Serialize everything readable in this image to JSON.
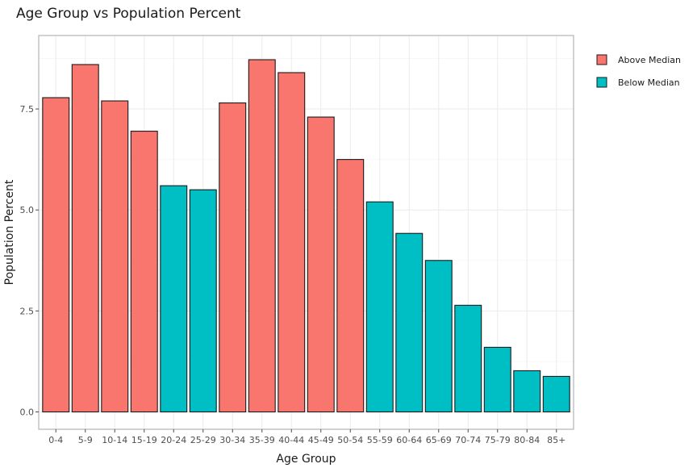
{
  "chart_data": {
    "type": "bar",
    "title": "Age Group vs Population Percent",
    "xlabel": "Age Group",
    "ylabel": "Population Percent",
    "ylim": [
      0,
      8.9
    ],
    "yticks": [
      0.0,
      2.5,
      5.0,
      7.5
    ],
    "ytick_labels": [
      "0.0",
      "2.5",
      "5.0",
      "7.5"
    ],
    "grid": true,
    "legend_position": "right",
    "categories": [
      "0-4",
      "5-9",
      "10-14",
      "15-19",
      "20-24",
      "25-29",
      "30-34",
      "35-39",
      "40-44",
      "45-49",
      "50-54",
      "55-59",
      "60-64",
      "65-69",
      "70-74",
      "75-79",
      "80-84",
      "85+"
    ],
    "values": [
      7.78,
      8.6,
      7.7,
      6.95,
      5.6,
      5.5,
      7.65,
      8.72,
      8.4,
      7.3,
      6.25,
      5.2,
      4.42,
      3.75,
      2.64,
      1.6,
      1.02,
      0.88
    ],
    "groups": [
      "Above Median",
      "Above Median",
      "Above Median",
      "Above Median",
      "Below Median",
      "Below Median",
      "Above Median",
      "Above Median",
      "Above Median",
      "Above Median",
      "Above Median",
      "Below Median",
      "Below Median",
      "Below Median",
      "Below Median",
      "Below Median",
      "Below Median",
      "Below Median"
    ],
    "legend": [
      {
        "name": "Above Median",
        "color": "#F8766D"
      },
      {
        "name": "Below Median",
        "color": "#00BFC4"
      }
    ],
    "colors": {
      "Above Median": "#F8766D",
      "Below Median": "#00BFC4"
    }
  }
}
